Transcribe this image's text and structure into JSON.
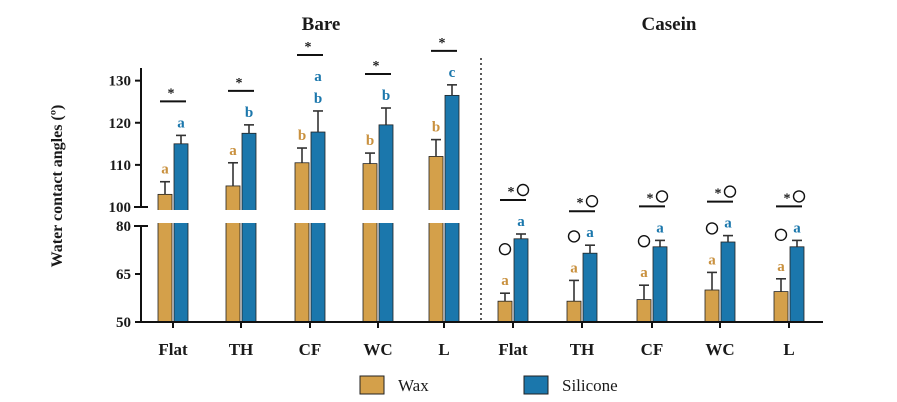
{
  "chart_data": {
    "type": "bar",
    "title": "",
    "ylabel": "Water contact angles (º)",
    "groups": [
      {
        "title": "Bare",
        "categories": [
          "Flat",
          "TH",
          "CF",
          "WC",
          "L"
        ]
      },
      {
        "title": "Casein",
        "categories": [
          "Flat",
          "TH",
          "CF",
          "WC",
          "L"
        ]
      }
    ],
    "y_axis": {
      "broken": true,
      "upper_segment": {
        "ylim": [
          100,
          133
        ],
        "ticks": [
          100,
          110,
          120,
          130
        ]
      },
      "lower_segment": {
        "ylim": [
          50,
          80
        ],
        "ticks": [
          50,
          65,
          80
        ]
      }
    },
    "series": [
      {
        "name": "Wax",
        "color": "#d4a04a",
        "values": [
          103,
          105,
          110.5,
          110.3,
          112,
          56.5,
          56.5,
          57,
          60,
          59.5
        ],
        "errors": [
          3,
          5.5,
          3.5,
          2.5,
          4,
          2.5,
          6.5,
          4.5,
          5.5,
          4
        ],
        "letters": [
          "a",
          "a",
          "b",
          "b",
          "b",
          "a",
          "a",
          "a",
          "a",
          "a"
        ]
      },
      {
        "name": "Silicone",
        "color": "#1b77ac",
        "values": [
          115,
          117.5,
          117.8,
          119.5,
          126.5,
          76,
          71.5,
          73.5,
          75,
          73.5
        ],
        "errors": [
          2,
          2,
          5,
          4,
          2.5,
          1.5,
          2.5,
          2,
          2,
          2
        ],
        "letters": [
          "a",
          "b",
          "a b",
          "b",
          "c",
          "a",
          "a",
          "a",
          "a",
          "a"
        ]
      }
    ],
    "significance_stars": [
      "*",
      "*",
      "*",
      "*",
      "*",
      "*",
      "*",
      "*",
      "*",
      "*"
    ],
    "legend": {
      "position": "bottom",
      "entries": [
        "Wax",
        "Silicone"
      ]
    },
    "grid": false
  }
}
